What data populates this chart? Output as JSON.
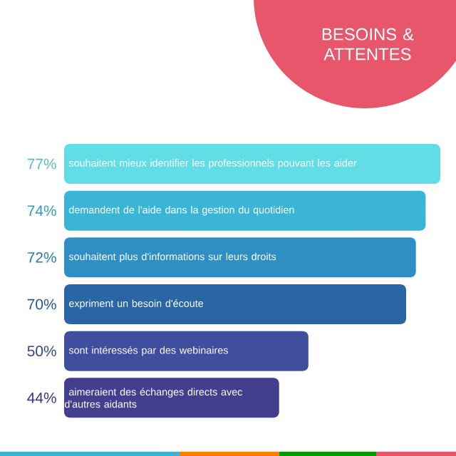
{
  "chart_data": {
    "type": "bar",
    "orientation": "horizontal",
    "title": "BESOINS & ATTENTES",
    "categories": [
      "souhaitent mieux identifier les professionnels pouvant les aider",
      "demandent de l'aide dans la gestion du quotidien",
      "souhaitent plus d'informations sur leurs droits",
      "expriment un besoin d'écoute",
      "sont intéressés par des webinaires",
      "aimeraient des échanges directs avec d'autres aidants"
    ],
    "values": [
      77,
      74,
      72,
      70,
      50,
      44
    ],
    "value_labels": [
      "77%",
      "74%",
      "72%",
      "70%",
      "50%",
      "44%"
    ],
    "colors": [
      "#62dde6",
      "#3ab5d6",
      "#2f8fc4",
      "#2a66a6",
      "#3f4f9e",
      "#433f8e"
    ]
  }
}
